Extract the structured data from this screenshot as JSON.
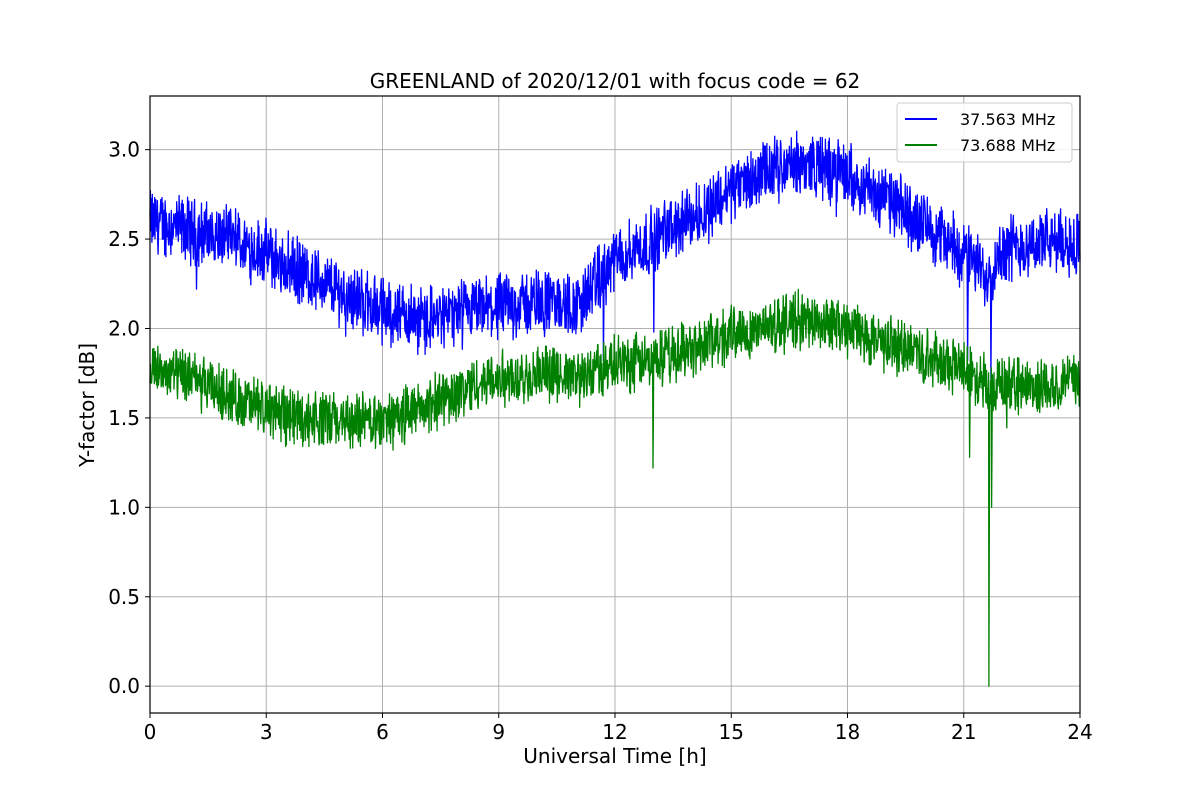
{
  "chart_data": {
    "type": "line",
    "title": "GREENLAND of 2020/12/01 with focus code = 62",
    "xlabel": "Universal Time [h]",
    "ylabel": "Y-factor [dB]",
    "xlim": [
      0,
      24
    ],
    "ylim": [
      -0.15,
      3.3
    ],
    "xticks": [
      0,
      3,
      6,
      9,
      12,
      15,
      18,
      21,
      24
    ],
    "yticks": [
      0.0,
      0.5,
      1.0,
      1.5,
      2.0,
      2.5,
      3.0
    ],
    "xtick_labels": [
      "0",
      "3",
      "6",
      "9",
      "12",
      "15",
      "18",
      "21",
      "24"
    ],
    "ytick_labels": [
      "0.0",
      "0.5",
      "1.0",
      "1.5",
      "2.0",
      "2.5",
      "3.0"
    ],
    "grid": true,
    "legend_position": "top-right",
    "series": [
      {
        "name": "37.563 MHz",
        "color": "#0000ff",
        "noise_band": 0.3,
        "x": [
          0,
          1,
          2,
          3,
          4,
          5,
          6,
          7,
          8,
          9,
          10,
          11,
          11.5,
          12,
          13,
          14,
          15,
          16,
          17,
          18,
          19,
          20,
          21,
          21.6,
          22,
          23,
          24
        ],
        "y": [
          2.6,
          2.55,
          2.5,
          2.42,
          2.3,
          2.2,
          2.1,
          2.05,
          2.08,
          2.12,
          2.15,
          2.12,
          2.25,
          2.38,
          2.5,
          2.62,
          2.78,
          2.88,
          2.92,
          2.86,
          2.72,
          2.58,
          2.42,
          2.3,
          2.45,
          2.48,
          2.48
        ],
        "dips": [
          [
            1.2,
            2.22
          ],
          [
            11.7,
            1.82
          ],
          [
            13.0,
            1.98
          ],
          [
            21.1,
            1.82
          ],
          [
            21.7,
            1.72
          ]
        ]
      },
      {
        "name": "73.688 MHz",
        "color": "#008000",
        "noise_band": 0.26,
        "x": [
          0,
          1,
          2,
          3,
          4,
          5,
          6,
          7,
          8,
          9,
          10,
          11,
          12,
          13,
          14,
          15,
          16,
          17,
          18,
          19,
          20,
          21,
          21.6,
          22,
          23,
          24
        ],
        "y": [
          1.78,
          1.72,
          1.62,
          1.55,
          1.5,
          1.48,
          1.48,
          1.55,
          1.65,
          1.72,
          1.75,
          1.72,
          1.8,
          1.82,
          1.9,
          1.97,
          2.02,
          2.05,
          2.0,
          1.92,
          1.85,
          1.78,
          1.7,
          1.68,
          1.68,
          1.7
        ],
        "dips": [
          [
            12.98,
            1.22
          ],
          [
            21.15,
            1.28
          ],
          [
            21.65,
            0.0
          ],
          [
            21.72,
            1.0
          ]
        ]
      }
    ]
  }
}
